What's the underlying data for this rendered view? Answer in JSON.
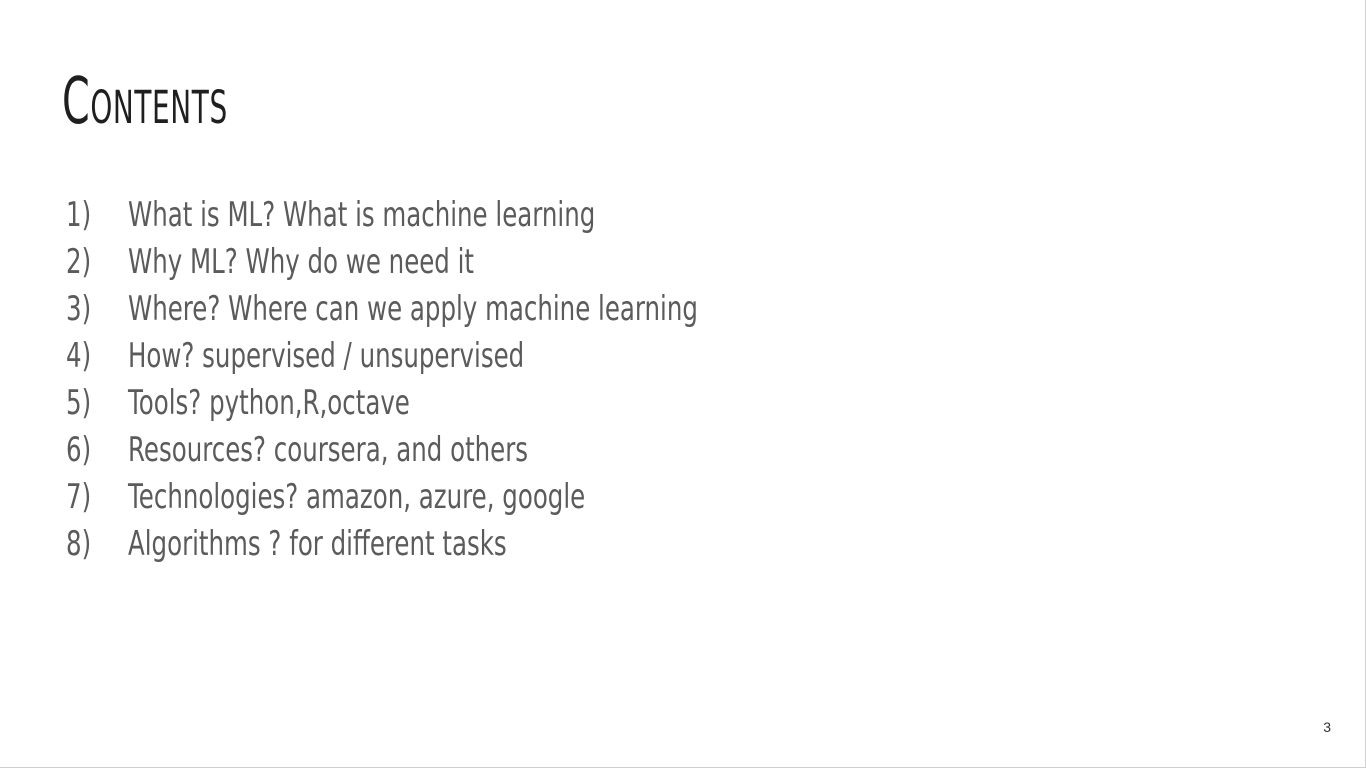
{
  "slide": {
    "title": "Contents",
    "page_number": "3",
    "items": [
      {
        "number": "1)",
        "text": "What is ML? What is machine learning"
      },
      {
        "number": "2)",
        "text": "Why ML? Why do we need it"
      },
      {
        "number": "3)",
        "text": "Where? Where can we apply machine learning"
      },
      {
        "number": "4)",
        "text": "How? supervised / unsupervised"
      },
      {
        "number": "5)",
        "text": "Tools? python,R,octave"
      },
      {
        "number": "6)",
        "text": "Resources? coursera, and others"
      },
      {
        "number": "7)",
        "text": "Technologies? amazon, azure, google"
      },
      {
        "number": "8)",
        "text": "Algorithms ? for different tasks"
      }
    ]
  }
}
